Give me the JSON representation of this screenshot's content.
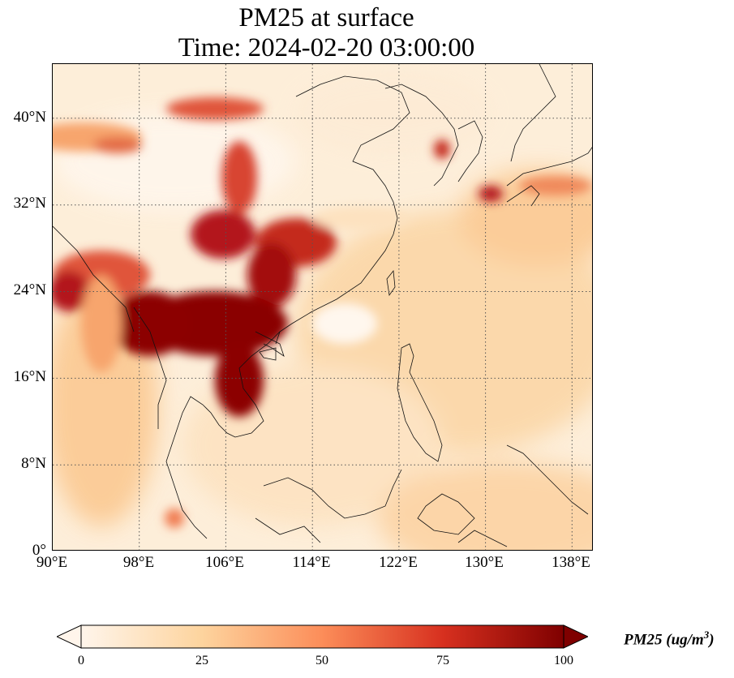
{
  "title": {
    "line1": "PM25 at surface",
    "line2": "Time: 2024-02-20 03:00:00"
  },
  "map": {
    "lon_range": [
      90,
      140
    ],
    "lat_range": [
      0,
      45
    ],
    "x_ticks": [
      "90°E",
      "98°E",
      "106°E",
      "114°E",
      "122°E",
      "130°E",
      "138°E"
    ],
    "y_ticks": [
      "0°",
      "8°N",
      "16°N",
      "24°N",
      "32°N",
      "40°N"
    ]
  },
  "colorbar": {
    "label": "PM25 (ug/m",
    "label_exp": "3",
    "label_close": ")",
    "min": 0,
    "max": 100,
    "ticks": [
      "0",
      "25",
      "50",
      "75",
      "100"
    ],
    "colors": [
      "#fff5eb",
      "#fdd49e",
      "#fc8d59",
      "#d7301f",
      "#7f0000"
    ],
    "extend": "both"
  }
}
